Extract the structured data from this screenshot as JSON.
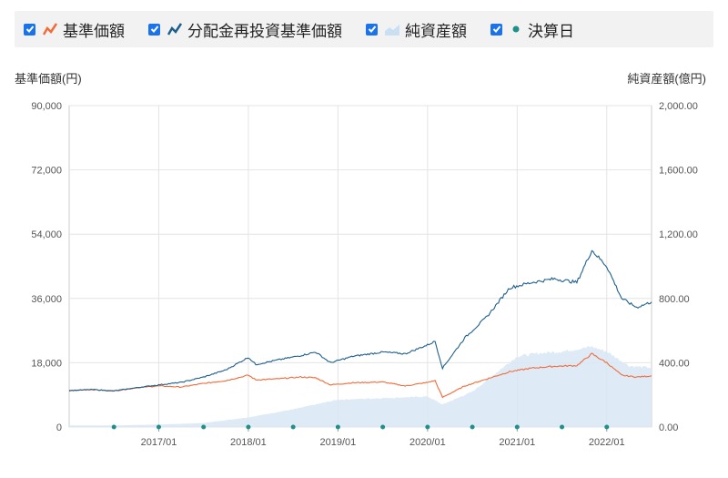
{
  "legend": [
    {
      "label": "基準価額",
      "icon": "orange-line-icon",
      "color": "#f26b3a",
      "checked": true
    },
    {
      "label": "分配金再投資基準価額",
      "icon": "blue-line-icon",
      "color": "#1e5f8c",
      "checked": true
    },
    {
      "label": "純資産額",
      "icon": "area-chart-icon",
      "color": "#c9dff2",
      "checked": true
    },
    {
      "label": "決算日",
      "icon": "teal-dot-icon",
      "color": "#1f8f8a",
      "checked": true
    }
  ],
  "axis_titles": {
    "left": "基準価額(円)",
    "right": "純資産額(億円)"
  },
  "chart_data": {
    "type": "line",
    "x_range": [
      "2016-01",
      "2022-07"
    ],
    "x_ticks": [
      "2017/01",
      "2018/01",
      "2019/01",
      "2020/01",
      "2021/01",
      "2022/01"
    ],
    "y_left": {
      "min": 0,
      "max": 90000,
      "ticks": [
        "0",
        "18,000",
        "36,000",
        "54,000",
        "72,000",
        "90,000"
      ]
    },
    "y_right": {
      "min": 0,
      "max": 2000,
      "ticks": [
        "0.00",
        "400.00",
        "800.00",
        "1,200.00",
        "1,600.00",
        "2,000.00"
      ]
    },
    "grid": true,
    "series": [
      {
        "name": "基準価額",
        "axis": "left",
        "color": "#f26b3a",
        "points": [
          [
            "2016-01",
            10200
          ],
          [
            "2016-04",
            10500
          ],
          [
            "2016-07",
            10100
          ],
          [
            "2016-10",
            11000
          ],
          [
            "2017-01",
            11500
          ],
          [
            "2017-04",
            11200
          ],
          [
            "2017-07",
            12200
          ],
          [
            "2017-10",
            13000
          ],
          [
            "2018-01",
            14500
          ],
          [
            "2018-02",
            13200
          ],
          [
            "2018-05",
            13500
          ],
          [
            "2018-08",
            14000
          ],
          [
            "2018-10",
            13800
          ],
          [
            "2018-12",
            11800
          ],
          [
            "2019-03",
            12400
          ],
          [
            "2019-07",
            12600
          ],
          [
            "2019-10",
            11500
          ],
          [
            "2020-01",
            12500
          ],
          [
            "2020-02",
            13000
          ],
          [
            "2020-03",
            8300
          ],
          [
            "2020-06",
            11500
          ],
          [
            "2020-09",
            13500
          ],
          [
            "2020-12",
            15500
          ],
          [
            "2021-03",
            16500
          ],
          [
            "2021-06",
            17000
          ],
          [
            "2021-09",
            17200
          ],
          [
            "2021-11",
            20500
          ],
          [
            "2022-01",
            18000
          ],
          [
            "2022-03",
            14500
          ],
          [
            "2022-05",
            14000
          ],
          [
            "2022-07",
            14300
          ]
        ]
      },
      {
        "name": "分配金再投資基準価額",
        "axis": "left",
        "color": "#1e5f8c",
        "points": [
          [
            "2016-01",
            10200
          ],
          [
            "2016-04",
            10500
          ],
          [
            "2016-07",
            10100
          ],
          [
            "2016-10",
            11000
          ],
          [
            "2017-01",
            11800
          ],
          [
            "2017-04",
            12500
          ],
          [
            "2017-07",
            14000
          ],
          [
            "2017-10",
            16000
          ],
          [
            "2018-01",
            19500
          ],
          [
            "2018-02",
            17500
          ],
          [
            "2018-05",
            18800
          ],
          [
            "2018-08",
            20000
          ],
          [
            "2018-10",
            21000
          ],
          [
            "2018-12",
            18000
          ],
          [
            "2019-03",
            19800
          ],
          [
            "2019-07",
            21000
          ],
          [
            "2019-10",
            20500
          ],
          [
            "2020-01",
            23000
          ],
          [
            "2020-02",
            24000
          ],
          [
            "2020-03",
            16500
          ],
          [
            "2020-06",
            25000
          ],
          [
            "2020-09",
            31000
          ],
          [
            "2020-12",
            39000
          ],
          [
            "2021-03",
            40500
          ],
          [
            "2021-06",
            41500
          ],
          [
            "2021-09",
            40500
          ],
          [
            "2021-11",
            49500
          ],
          [
            "2022-01",
            45000
          ],
          [
            "2022-03",
            36000
          ],
          [
            "2022-05",
            33500
          ],
          [
            "2022-07",
            35000
          ]
        ]
      },
      {
        "name": "純資産額",
        "axis": "right",
        "color": "#d8e8f5",
        "points": [
          [
            "2016-01",
            10
          ],
          [
            "2016-07",
            10
          ],
          [
            "2017-01",
            15
          ],
          [
            "2017-07",
            25
          ],
          [
            "2018-01",
            60
          ],
          [
            "2018-07",
            110
          ],
          [
            "2019-01",
            170
          ],
          [
            "2019-07",
            180
          ],
          [
            "2020-01",
            190
          ],
          [
            "2020-03",
            140
          ],
          [
            "2020-07",
            220
          ],
          [
            "2020-10",
            330
          ],
          [
            "2021-01",
            440
          ],
          [
            "2021-04",
            460
          ],
          [
            "2021-07",
            470
          ],
          [
            "2021-11",
            500
          ],
          [
            "2022-01",
            470
          ],
          [
            "2022-04",
            380
          ],
          [
            "2022-07",
            370
          ]
        ]
      }
    ],
    "settlement_dates": [
      "2016-07",
      "2017-01",
      "2017-07",
      "2018-01",
      "2018-07",
      "2019-01",
      "2019-07",
      "2020-01",
      "2020-07",
      "2021-01",
      "2021-07",
      "2022-01"
    ]
  }
}
